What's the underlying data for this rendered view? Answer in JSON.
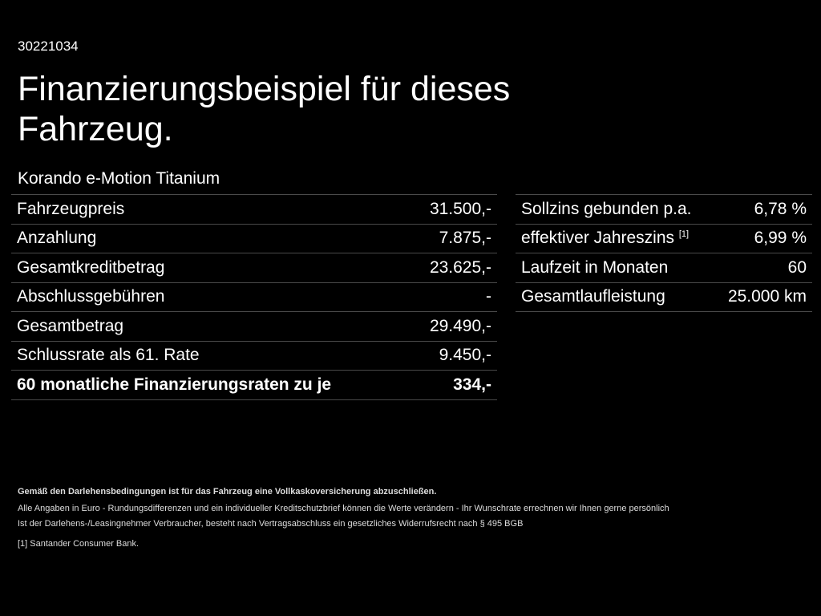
{
  "code": "30221034",
  "title": "Finanzierungsbeispiel für dieses Fahrzeug.",
  "model": "Korando e-Motion Titanium",
  "left_table": [
    {
      "label": "Fahrzeugpreis",
      "value": "31.500,-"
    },
    {
      "label": "Anzahlung",
      "value": "7.875,-"
    },
    {
      "label": "Gesamtkreditbetrag",
      "value": "23.625,-"
    },
    {
      "label": "Abschlussgebühren",
      "value": "-"
    },
    {
      "label": "Gesamtbetrag",
      "value": "29.490,-"
    },
    {
      "label": "Schlussrate als 61. Rate",
      "value": "9.450,-"
    },
    {
      "label": "60 monatliche Finanzierungsraten zu je",
      "value": "334,-"
    }
  ],
  "right_table": [
    {
      "label": "Sollzins gebunden p.a.",
      "sup": "",
      "value": "6,78 %"
    },
    {
      "label": "effektiver Jahreszins",
      "sup": "[1]",
      "value": "6,99 %"
    },
    {
      "label": "Laufzeit in Monaten",
      "sup": "",
      "value": "60"
    },
    {
      "label": "Gesamtlaufleistung",
      "sup": "",
      "value": "25.000 km"
    }
  ],
  "footer": {
    "line1": "Gemäß den Darlehensbedingungen ist für das Fahrzeug eine Vollkaskoversicherung abzuschließen.",
    "line2": "Alle Angaben in Euro - Rundungsdifferenzen und ein individueller Kreditschutzbrief können die Werte verändern - Ihr Wunschrate errechnen wir Ihnen gerne persönlich",
    "line3": "Ist der Darlehens-/Leasingnehmer Verbraucher, besteht nach Vertragsabschluss ein gesetzliches Widerrufsrecht nach § 495 BGB",
    "note_marker": "[1]",
    "note": "Santander Consumer Bank."
  }
}
